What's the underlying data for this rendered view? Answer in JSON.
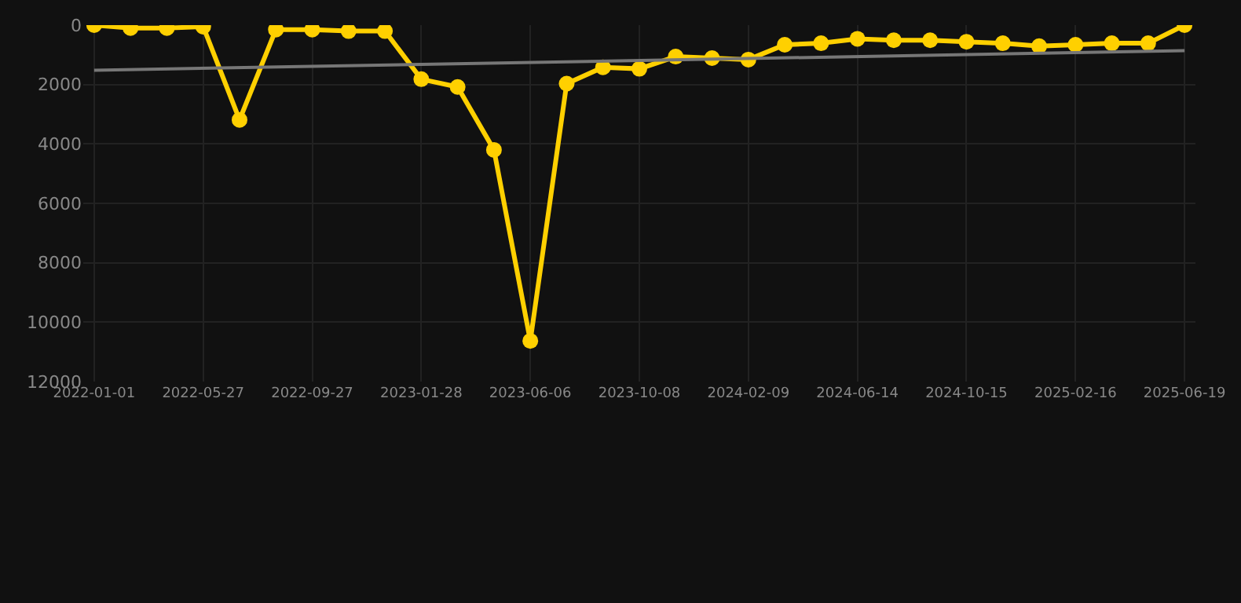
{
  "chart_data": {
    "type": "line",
    "categories": [
      "2022-01-01",
      null,
      null,
      "2022-05-27",
      null,
      null,
      "2022-09-27",
      null,
      null,
      "2023-01-28",
      null,
      null,
      "2023-06-06",
      null,
      null,
      "2023-10-08",
      null,
      null,
      "2024-02-09",
      null,
      null,
      "2024-06-14",
      null,
      null,
      "2024-10-15",
      null,
      null,
      "2025-02-16",
      null,
      null,
      "2025-06-19"
    ],
    "series": [
      {
        "color": "#ffd000",
        "marker": "circle",
        "values": [
          0,
          100,
          100,
          50,
          3190,
          150,
          150,
          200,
          200,
          1820,
          2080,
          4200,
          10630,
          1970,
          1420,
          1470,
          1060,
          1110,
          1160,
          660,
          610,
          460,
          510,
          510,
          560,
          610,
          710,
          660,
          610,
          610,
          0
        ]
      },
      {
        "color": "#777777",
        "marker": "none",
        "values": [
          1520,
          null,
          null,
          null,
          null,
          null,
          null,
          null,
          null,
          null,
          null,
          null,
          null,
          null,
          null,
          null,
          null,
          null,
          null,
          null,
          null,
          null,
          null,
          null,
          null,
          null,
          null,
          null,
          null,
          null,
          860
        ]
      }
    ],
    "ylim": [
      12000,
      0
    ],
    "yticks": [
      0,
      2000,
      4000,
      6000,
      8000,
      10000,
      12000
    ],
    "grid": true
  }
}
